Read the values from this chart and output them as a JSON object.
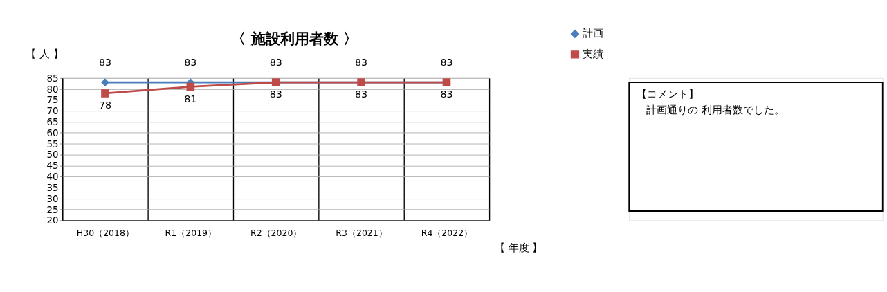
{
  "chart_data": {
    "type": "line",
    "title": "〈 施設利用者数 〉",
    "ylabel": "【 人 】",
    "xlabel": "【 年度 】",
    "categories": [
      "H30（2018）",
      "R1（2019）",
      "R2（2020）",
      "R3（2021）",
      "R4（2022）"
    ],
    "series": [
      {
        "name": "計画",
        "color": "#4a7ebb",
        "marker": "diamond",
        "values": [
          83,
          83,
          83,
          83,
          83
        ]
      },
      {
        "name": "実績",
        "color": "#be4b48",
        "marker": "square",
        "values": [
          78,
          81,
          83,
          83,
          83
        ]
      }
    ],
    "ylim": [
      20,
      85
    ],
    "yticks": [
      20,
      25,
      30,
      35,
      40,
      45,
      50,
      55,
      60,
      65,
      70,
      75,
      80,
      85
    ],
    "grid": true,
    "legend": "top right",
    "data_labels": true,
    "line_style": "solid",
    "annotations": [
      "【コメント】",
      "計画通りの 利用者数でした。"
    ]
  }
}
